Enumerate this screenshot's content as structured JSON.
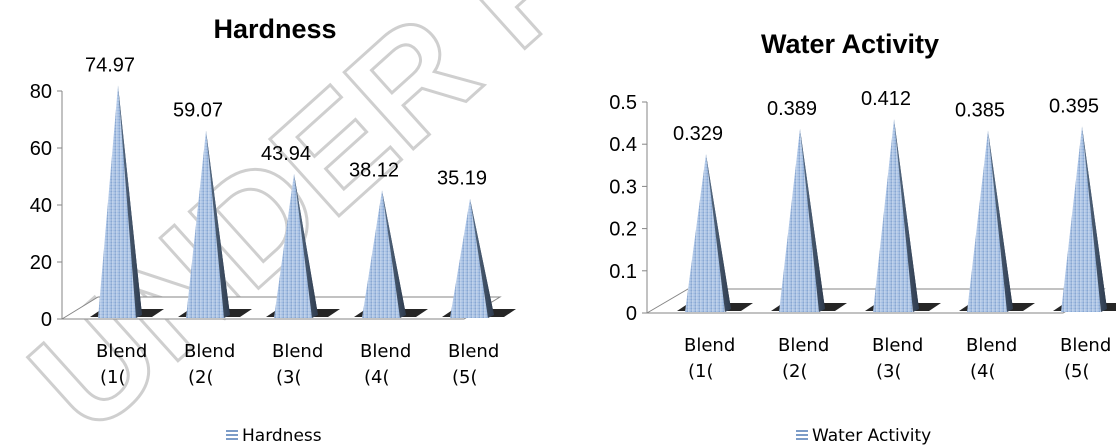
{
  "chart_data": [
    {
      "type": "bar",
      "style": "3d-pyramid",
      "title": "Hardness",
      "categories": [
        "Blend (1(",
        "Blend (2(",
        "Blend (3(",
        "Blend (4(",
        "Blend (5("
      ],
      "series": [
        {
          "name": "Hardness",
          "values": [
            74.97,
            59.07,
            43.94,
            38.12,
            35.19
          ],
          "labels": [
            "74.97",
            "59.07",
            "43.94",
            "38.12",
            "35.19"
          ]
        }
      ],
      "yticks": [
        "0",
        "20",
        "40",
        "60",
        "80"
      ],
      "ylim": [
        0,
        80
      ],
      "legend_position": "bottom",
      "grid": false,
      "color": "#9DB9E0"
    },
    {
      "type": "bar",
      "style": "3d-pyramid",
      "title": "Water Activity",
      "categories": [
        "Blend (1(",
        "Blend (2(",
        "Blend (3(",
        "Blend (4(",
        "Blend (5("
      ],
      "series": [
        {
          "name": "Water Activity",
          "values": [
            0.329,
            0.389,
            0.412,
            0.385,
            0.395
          ],
          "labels": [
            "0.329",
            "0.389",
            "0.412",
            "0.385",
            "0.395"
          ]
        }
      ],
      "yticks": [
        "0",
        "0.1",
        "0.2",
        "0.3",
        "0.4",
        "0.5"
      ],
      "ylim": [
        0,
        0.5
      ],
      "legend_position": "bottom",
      "grid": false,
      "color": "#9DB9E0"
    }
  ],
  "watermark": {
    "text": "UNDER PEER",
    "color": "#cfcfcf"
  }
}
